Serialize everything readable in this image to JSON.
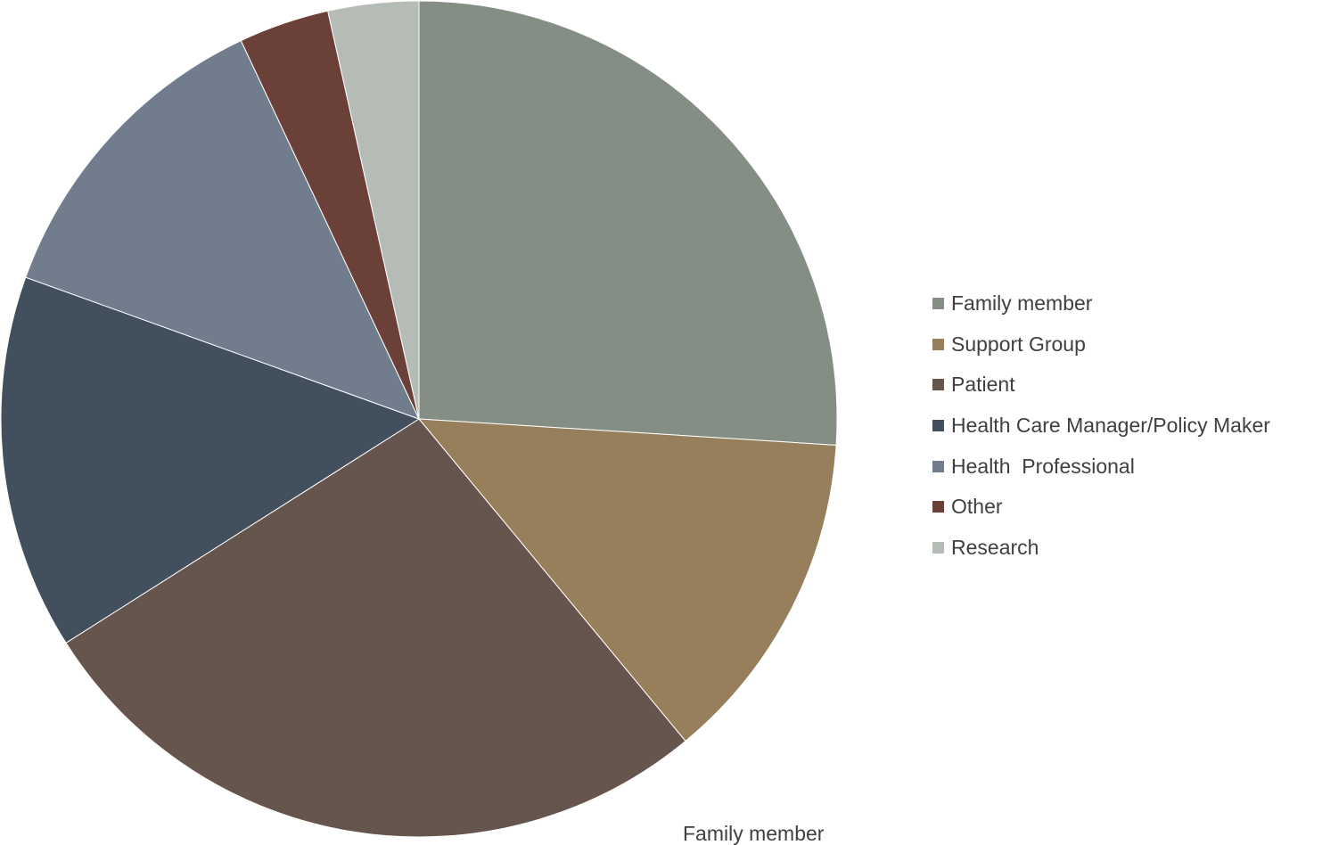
{
  "chart_data": {
    "type": "pie",
    "title": "",
    "slices": [
      {
        "label": "Family member",
        "value": 26,
        "color": "#848E85"
      },
      {
        "label": "Support Group",
        "value": 13,
        "color": "#977F5B"
      },
      {
        "label": "Patient",
        "value": 27,
        "color": "#66554C"
      },
      {
        "label": "Health Care Manager/Policy Maker",
        "value": 14.5,
        "color": "#42505D"
      },
      {
        "label": "Health  Professional",
        "value": 12.5,
        "color": "#717C8D"
      },
      {
        "label": "Other",
        "value": 3.5,
        "color": "#6A4038"
      },
      {
        "label": "Research",
        "value": 3.5,
        "color": "#B5BBB5"
      }
    ],
    "legend_position": "right",
    "data_label_visible": "Family member"
  }
}
